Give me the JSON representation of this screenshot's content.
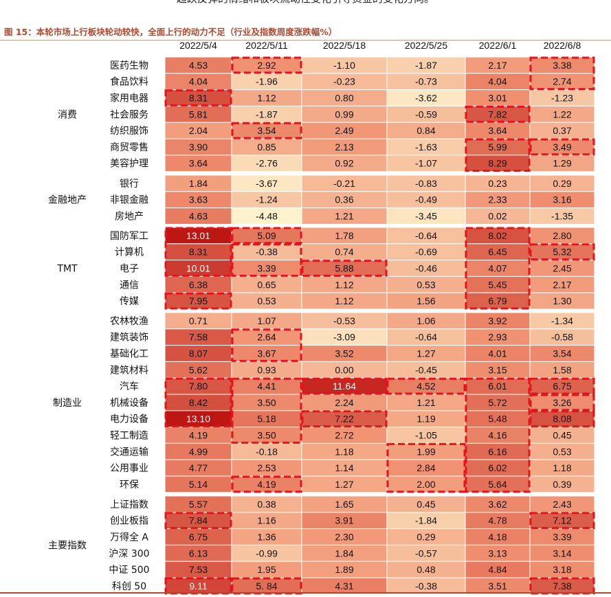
{
  "page": {
    "top_caption": "趋跌反弹的情绪和板块流动性变化引导资金的变化方向。",
    "figure_title": "图 15：本轮市场上行板块轮动较快，全面上行的动力不足（行业及指数周度涨跌幅%）"
  },
  "chart_data": {
    "type": "heatmap",
    "unit": "%",
    "columns": [
      "2022/5/4",
      "2022/5/11",
      "2022/5/18",
      "2022/5/25",
      "2022/6/1",
      "2022/6/8"
    ],
    "groups": [
      {
        "name": "消费",
        "rows": [
          {
            "label": "医药生物",
            "values": [
              "4.53",
              "2.92",
              "-1.10",
              "-1.87",
              "2.17",
              "3.38"
            ]
          },
          {
            "label": "食品饮料",
            "values": [
              "4.04",
              "-1.96",
              "-0.23",
              "-0.73",
              "4.04",
              "2.74"
            ]
          },
          {
            "label": "家用电器",
            "values": [
              "8.31",
              "1.12",
              "0.80",
              "-3.62",
              "3.01",
              "-1.23"
            ]
          },
          {
            "label": "社会服务",
            "values": [
              "5.81",
              "-1.87",
              "0.99",
              "-0.59",
              "7.82",
              "1.22"
            ]
          },
          {
            "label": "纺织服饰",
            "values": [
              "2.04",
              "3.54",
              "2.49",
              "0.84",
              "3.64",
              "0.37"
            ]
          },
          {
            "label": "商贸零售",
            "values": [
              "3.90",
              "0.85",
              "2.13",
              "-1.63",
              "5.99",
              "3.49"
            ]
          },
          {
            "label": "美容护理",
            "values": [
              "3.64",
              "-2.76",
              "0.92",
              "-1.07",
              "8.29",
              "1.29"
            ]
          }
        ]
      },
      {
        "name": "金融地产",
        "rows": [
          {
            "label": "银行",
            "values": [
              "1.84",
              "-3.67",
              "-0.21",
              "-0.83",
              "0.23",
              "0.29"
            ]
          },
          {
            "label": "非银金融",
            "values": [
              "3.63",
              "-1.24",
              "0.36",
              "-0.49",
              "2.33",
              "3.16"
            ]
          },
          {
            "label": "房地产",
            "values": [
              "4.63",
              "-4.48",
              "1.21",
              "-3.45",
              "0.02",
              "-1.35"
            ]
          }
        ]
      },
      {
        "name": "TMT",
        "rows": [
          {
            "label": "国防军工",
            "values": [
              "13.01",
              "5.09",
              "1.78",
              "-0.64",
              "8.02",
              "2.80"
            ]
          },
          {
            "label": "计算机",
            "values": [
              "8.31",
              "-0.38",
              "0.74",
              "-0.69",
              "6.45",
              "5.32"
            ]
          },
          {
            "label": "电子",
            "values": [
              "10.01",
              "3.39",
              "5.88",
              "-0.46",
              "4.07",
              "2.45"
            ]
          },
          {
            "label": "通信",
            "values": [
              "6.38",
              "0.65",
              "1.12",
              "0.53",
              "5.45",
              "2.17"
            ]
          },
          {
            "label": "传媒",
            "values": [
              "7.95",
              "0.53",
              "1.12",
              "1.56",
              "6.79",
              "1.30"
            ]
          }
        ]
      },
      {
        "name": "制造业",
        "rows": [
          {
            "label": "农林牧渔",
            "values": [
              "0.71",
              "1.07",
              "-0.53",
              "1.06",
              "3.92",
              "-1.34"
            ]
          },
          {
            "label": "建筑装饰",
            "values": [
              "7.58",
              "2.64",
              "-3.09",
              "-0.64",
              "2.93",
              "-0.58"
            ]
          },
          {
            "label": "基础化工",
            "values": [
              "8.07",
              "3.67",
              "3.52",
              "1.27",
              "4.01",
              "3.54"
            ]
          },
          {
            "label": "建筑材料",
            "values": [
              "5.62",
              "0.93",
              "0.00",
              "-0.45",
              "3.15",
              "1.58"
            ]
          },
          {
            "label": "汽车",
            "values": [
              "7.80",
              "4.41",
              "11.64",
              "4.52",
              "6.01",
              "6.75"
            ]
          },
          {
            "label": "机械设备",
            "values": [
              "8.42",
              "3.50",
              "2.24",
              "1.21",
              "5.72",
              "3.26"
            ]
          },
          {
            "label": "电力设备",
            "values": [
              "13.10",
              "5.18",
              "7.22",
              "1.19",
              "5.48",
              "8.08"
            ]
          },
          {
            "label": "轻工制造",
            "values": [
              "4.19",
              "3.50",
              "2.72",
              "-1.05",
              "4.16",
              "0.45"
            ]
          },
          {
            "label": "交通运输",
            "values": [
              "4.99",
              "-0.18",
              "1.18",
              "1.99",
              "6.16",
              "0.53"
            ]
          },
          {
            "label": "公用事业",
            "values": [
              "4.77",
              "2.53",
              "1.14",
              "2.84",
              "6.02",
              "1.18"
            ]
          },
          {
            "label": "环保",
            "values": [
              "5.14",
              "4.19",
              "1.27",
              "2.00",
              "5.64",
              "0.39"
            ]
          }
        ]
      },
      {
        "name": "主要指数",
        "rows": [
          {
            "label": "上证指数",
            "values": [
              "5.57",
              "0.38",
              "1.65",
              "0.45",
              "3.62",
              "2.43"
            ]
          },
          {
            "label": "创业板指",
            "values": [
              "7.84",
              "1.16",
              "3.91",
              "-1.84",
              "4.78",
              "7.12"
            ]
          },
          {
            "label": "万得全 A",
            "values": [
              "6.75",
              "1.36",
              "2.30",
              "0.29",
              "4.18",
              "3.39"
            ]
          },
          {
            "label": "沪深 300",
            "values": [
              "6.13",
              "-0.99",
              "1.84",
              "-0.57",
              "3.13",
              "3.14"
            ]
          },
          {
            "label": "中证 500",
            "values": [
              "7.53",
              "1.95",
              "1.89",
              "0.48",
              "4.84",
              "3.18"
            ]
          },
          {
            "label": "科创 50",
            "values": [
              "9.11",
              "5. 84",
              "4.31",
              "-0.38",
              "3.51",
              "7.38"
            ]
          }
        ]
      }
    ],
    "highlight_boxes": [
      {
        "column": "2022/5/4",
        "rows": [
          "家用电器"
        ]
      },
      {
        "column": "2022/5/4",
        "rows": [
          "国防军工",
          "电子"
        ]
      },
      {
        "column": "2022/5/4",
        "rows": [
          "传媒"
        ]
      },
      {
        "column": "2022/5/4",
        "rows": [
          "汽车",
          "电力设备"
        ]
      },
      {
        "column": "2022/5/4",
        "rows": [
          "创业板指"
        ]
      },
      {
        "column": "2022/5/4",
        "rows": [
          "科创 50"
        ]
      },
      {
        "column": "2022/5/11",
        "rows": [
          "医药生物"
        ]
      },
      {
        "column": "2022/5/11",
        "rows": [
          "纺织服饰"
        ]
      },
      {
        "column": "2022/5/11",
        "rows": [
          "国防军工"
        ]
      },
      {
        "column": "2022/5/11",
        "rows": [
          "计算机",
          "电子"
        ]
      },
      {
        "column": "2022/5/11",
        "rows": [
          "建筑装饰",
          "基础化工"
        ]
      },
      {
        "column": "2022/5/11",
        "rows": [
          "汽车",
          "轻工制造"
        ]
      },
      {
        "column": "2022/5/11",
        "rows": [
          "环保"
        ]
      },
      {
        "column": "2022/5/11",
        "rows": [
          "科创 50"
        ]
      },
      {
        "column": "2022/5/18",
        "rows": [
          "电子"
        ]
      },
      {
        "column": "2022/5/18",
        "rows": [
          "汽车"
        ]
      },
      {
        "column": "2022/5/18",
        "rows": [
          "电力设备"
        ]
      },
      {
        "column": "2022/5/25",
        "rows": [
          "汽车"
        ]
      },
      {
        "column": "2022/5/25",
        "rows": [
          "交通运输",
          "环保"
        ]
      },
      {
        "column": "2022/6/1",
        "rows": [
          "社会服务"
        ]
      },
      {
        "column": "2022/6/1",
        "rows": [
          "商贸零售",
          "美容护理"
        ]
      },
      {
        "column": "2022/6/1",
        "rows": [
          "国防军工",
          "传媒"
        ]
      },
      {
        "column": "2022/6/1",
        "rows": [
          "汽车",
          "环保"
        ]
      },
      {
        "column": "2022/6/8",
        "rows": [
          "医药生物",
          "食品饮料"
        ]
      },
      {
        "column": "2022/6/8",
        "rows": [
          "商贸零售"
        ]
      },
      {
        "column": "2022/6/8",
        "rows": [
          "计算机"
        ]
      },
      {
        "column": "2022/6/8",
        "rows": [
          "汽车"
        ]
      },
      {
        "column": "2022/6/8",
        "rows": [
          "机械设备"
        ]
      },
      {
        "column": "2022/6/8",
        "rows": [
          "电力设备"
        ]
      },
      {
        "column": "2022/6/8",
        "rows": [
          "创业板指"
        ]
      },
      {
        "column": "2022/6/8",
        "rows": [
          "科创 50"
        ]
      }
    ],
    "colors": {
      "low": "#fdf2cc",
      "mid": "#f09070",
      "high": "#bc1512",
      "highlight_border": "#e3141b",
      "separator": "#ffffff"
    }
  }
}
